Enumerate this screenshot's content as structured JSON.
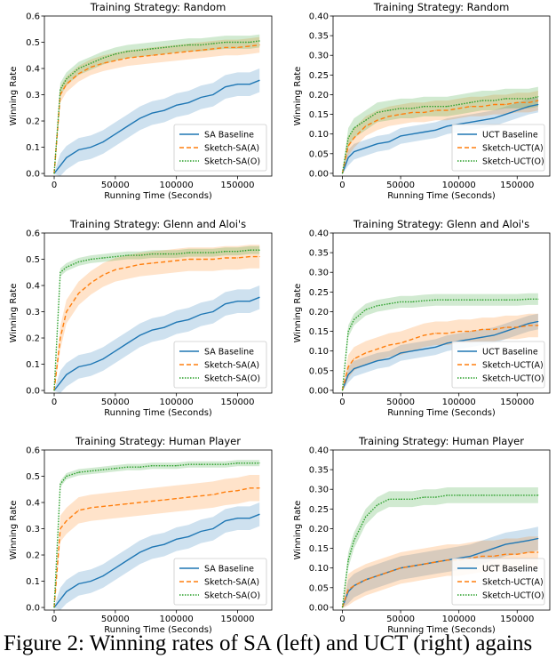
{
  "caption": "Figure 2: Winning rates of SA (left) and UCT (right) agains",
  "colors": {
    "sa": "#1f77b4",
    "sketch_a": "#ff7f0e",
    "sketch_o": "#2ca02c"
  },
  "chart_data": [
    {
      "type": "line",
      "title": "Training Strategy: Random",
      "xlabel": "Running Time (Seconds)",
      "ylabel": "Winning Rate",
      "xlim": [
        -8000,
        178000
      ],
      "ylim": [
        -0.01,
        0.6
      ],
      "xticks": [
        0,
        50000,
        100000,
        150000
      ],
      "xtick_labels": [
        "0",
        "50000",
        "100000",
        "150000"
      ],
      "yticks": [
        0.0,
        0.1,
        0.2,
        0.3,
        0.4,
        0.5,
        0.6
      ],
      "ytick_labels": [
        "0.0",
        "0.1",
        "0.2",
        "0.3",
        "0.4",
        "0.5",
        "0.6"
      ],
      "legend_position": "bottom-right",
      "x": [
        0,
        5000,
        10000,
        20000,
        30000,
        40000,
        50000,
        60000,
        70000,
        80000,
        90000,
        100000,
        110000,
        120000,
        130000,
        140000,
        150000,
        160000,
        168000
      ],
      "series": [
        {
          "name": "SA Baseline",
          "color": "#1f77b4",
          "style": "solid",
          "values": [
            0.0,
            0.03,
            0.06,
            0.09,
            0.1,
            0.12,
            0.15,
            0.18,
            0.21,
            0.23,
            0.24,
            0.26,
            0.27,
            0.29,
            0.3,
            0.33,
            0.34,
            0.34,
            0.355
          ],
          "band": 0.045
        },
        {
          "name": "Sketch-SA(A)",
          "color": "#ff7f0e",
          "style": "dashed",
          "values": [
            0.0,
            0.3,
            0.34,
            0.38,
            0.405,
            0.42,
            0.43,
            0.44,
            0.445,
            0.45,
            0.455,
            0.46,
            0.465,
            0.47,
            0.475,
            0.48,
            0.48,
            0.485,
            0.49
          ],
          "band": 0.03
        },
        {
          "name": "Sketch-SA(O)",
          "color": "#2ca02c",
          "style": "dotted",
          "values": [
            0.0,
            0.32,
            0.36,
            0.4,
            0.42,
            0.44,
            0.455,
            0.465,
            0.47,
            0.475,
            0.48,
            0.485,
            0.49,
            0.49,
            0.495,
            0.5,
            0.5,
            0.5,
            0.505
          ],
          "band": 0.025
        }
      ]
    },
    {
      "type": "line",
      "title": "Training Strategy: Random",
      "xlabel": "Running Time (Seconds)",
      "ylabel": "Winning Rate",
      "xlim": [
        -8000,
        178000
      ],
      "ylim": [
        -0.007,
        0.4
      ],
      "xticks": [
        0,
        50000,
        100000,
        150000
      ],
      "xtick_labels": [
        "0",
        "50000",
        "100000",
        "150000"
      ],
      "yticks": [
        0.0,
        0.05,
        0.1,
        0.15,
        0.2,
        0.25,
        0.3,
        0.35,
        0.4
      ],
      "ytick_labels": [
        "0.00",
        "0.05",
        "0.10",
        "0.15",
        "0.20",
        "0.25",
        "0.30",
        "0.35",
        "0.40"
      ],
      "legend_position": "bottom-right",
      "x": [
        0,
        5000,
        10000,
        20000,
        30000,
        40000,
        50000,
        60000,
        70000,
        80000,
        90000,
        100000,
        110000,
        120000,
        130000,
        140000,
        150000,
        160000,
        168000
      ],
      "series": [
        {
          "name": "UCT Baseline",
          "color": "#1f77b4",
          "style": "solid",
          "values": [
            0.0,
            0.04,
            0.055,
            0.065,
            0.075,
            0.08,
            0.095,
            0.1,
            0.105,
            0.11,
            0.12,
            0.125,
            0.13,
            0.135,
            0.14,
            0.15,
            0.16,
            0.17,
            0.175
          ],
          "band": 0.02
        },
        {
          "name": "Sketch-UCT(A)",
          "color": "#ff7f0e",
          "style": "dashed",
          "values": [
            0.0,
            0.07,
            0.09,
            0.12,
            0.135,
            0.145,
            0.15,
            0.155,
            0.155,
            0.16,
            0.16,
            0.165,
            0.17,
            0.17,
            0.175,
            0.175,
            0.18,
            0.18,
            0.185
          ],
          "band": 0.025
        },
        {
          "name": "Sketch-UCT(O)",
          "color": "#2ca02c",
          "style": "dotted",
          "values": [
            0.0,
            0.09,
            0.115,
            0.135,
            0.155,
            0.16,
            0.165,
            0.165,
            0.17,
            0.17,
            0.17,
            0.175,
            0.18,
            0.185,
            0.185,
            0.19,
            0.19,
            0.19,
            0.195
          ],
          "band": 0.025
        }
      ]
    },
    {
      "type": "line",
      "title": "Training Strategy: Glenn and Aloi's",
      "xlabel": "Running Time (Seconds)",
      "ylabel": "Winning Rate",
      "xlim": [
        -8000,
        178000
      ],
      "ylim": [
        -0.01,
        0.6
      ],
      "xticks": [
        0,
        50000,
        100000,
        150000
      ],
      "xtick_labels": [
        "0",
        "50000",
        "100000",
        "150000"
      ],
      "yticks": [
        0.0,
        0.1,
        0.2,
        0.3,
        0.4,
        0.5,
        0.6
      ],
      "ytick_labels": [
        "0.0",
        "0.1",
        "0.2",
        "0.3",
        "0.4",
        "0.5",
        "0.6"
      ],
      "legend_position": "bottom-right",
      "x": [
        0,
        5000,
        10000,
        20000,
        30000,
        40000,
        50000,
        60000,
        70000,
        80000,
        90000,
        100000,
        110000,
        120000,
        130000,
        140000,
        150000,
        160000,
        168000
      ],
      "series": [
        {
          "name": "SA Baseline",
          "color": "#1f77b4",
          "style": "solid",
          "values": [
            0.0,
            0.03,
            0.06,
            0.09,
            0.1,
            0.12,
            0.15,
            0.18,
            0.21,
            0.23,
            0.24,
            0.26,
            0.27,
            0.29,
            0.3,
            0.33,
            0.34,
            0.34,
            0.355
          ],
          "band": 0.045
        },
        {
          "name": "Sketch-SA(A)",
          "color": "#ff7f0e",
          "style": "dashed",
          "values": [
            0.0,
            0.2,
            0.3,
            0.37,
            0.41,
            0.44,
            0.46,
            0.47,
            0.48,
            0.485,
            0.49,
            0.495,
            0.5,
            0.5,
            0.5,
            0.505,
            0.505,
            0.51,
            0.51
          ],
          "band": 0.045
        },
        {
          "name": "Sketch-SA(O)",
          "color": "#2ca02c",
          "style": "dotted",
          "values": [
            0.0,
            0.45,
            0.47,
            0.49,
            0.5,
            0.505,
            0.51,
            0.515,
            0.515,
            0.52,
            0.52,
            0.52,
            0.525,
            0.525,
            0.525,
            0.53,
            0.53,
            0.535,
            0.535
          ],
          "band": 0.015
        }
      ]
    },
    {
      "type": "line",
      "title": "Training Strategy: Glenn and Aloi's",
      "xlabel": "Running Time (Seconds)",
      "ylabel": "Winning Rate",
      "xlim": [
        -8000,
        178000
      ],
      "ylim": [
        -0.007,
        0.4
      ],
      "xticks": [
        0,
        50000,
        100000,
        150000
      ],
      "xtick_labels": [
        "0",
        "50000",
        "100000",
        "150000"
      ],
      "yticks": [
        0.0,
        0.05,
        0.1,
        0.15,
        0.2,
        0.25,
        0.3,
        0.35,
        0.4
      ],
      "ytick_labels": [
        "0.00",
        "0.05",
        "0.10",
        "0.15",
        "0.20",
        "0.25",
        "0.30",
        "0.35",
        "0.40"
      ],
      "legend_position": "bottom-right",
      "x": [
        0,
        5000,
        10000,
        20000,
        30000,
        40000,
        50000,
        60000,
        70000,
        80000,
        90000,
        100000,
        110000,
        120000,
        130000,
        140000,
        150000,
        160000,
        168000
      ],
      "series": [
        {
          "name": "UCT Baseline",
          "color": "#1f77b4",
          "style": "solid",
          "values": [
            0.0,
            0.04,
            0.055,
            0.065,
            0.075,
            0.08,
            0.095,
            0.1,
            0.105,
            0.11,
            0.12,
            0.125,
            0.13,
            0.135,
            0.14,
            0.15,
            0.16,
            0.17,
            0.175
          ],
          "band": 0.02
        },
        {
          "name": "Sketch-UCT(A)",
          "color": "#ff7f0e",
          "style": "dashed",
          "values": [
            0.0,
            0.06,
            0.08,
            0.095,
            0.105,
            0.115,
            0.12,
            0.13,
            0.14,
            0.145,
            0.145,
            0.15,
            0.15,
            0.155,
            0.155,
            0.16,
            0.16,
            0.165,
            0.165
          ],
          "band": 0.03
        },
        {
          "name": "Sketch-UCT(O)",
          "color": "#2ca02c",
          "style": "dotted",
          "values": [
            0.0,
            0.15,
            0.18,
            0.205,
            0.215,
            0.22,
            0.225,
            0.225,
            0.228,
            0.23,
            0.23,
            0.23,
            0.23,
            0.23,
            0.23,
            0.23,
            0.23,
            0.232,
            0.232
          ],
          "band": 0.015
        }
      ]
    },
    {
      "type": "line",
      "title": "Training Strategy: Human Player",
      "xlabel": "Running Time (Seconds)",
      "ylabel": "Winning Rate",
      "xlim": [
        -8000,
        178000
      ],
      "ylim": [
        -0.01,
        0.6
      ],
      "xticks": [
        0,
        50000,
        100000,
        150000
      ],
      "xtick_labels": [
        "0",
        "50000",
        "100000",
        "150000"
      ],
      "yticks": [
        0.0,
        0.1,
        0.2,
        0.3,
        0.4,
        0.5,
        0.6
      ],
      "ytick_labels": [
        "0.0",
        "0.1",
        "0.2",
        "0.3",
        "0.4",
        "0.5",
        "0.6"
      ],
      "legend_position": "bottom-right",
      "x": [
        0,
        5000,
        10000,
        20000,
        30000,
        40000,
        50000,
        60000,
        70000,
        80000,
        90000,
        100000,
        110000,
        120000,
        130000,
        140000,
        150000,
        160000,
        168000
      ],
      "series": [
        {
          "name": "SA Baseline",
          "color": "#1f77b4",
          "style": "solid",
          "values": [
            0.0,
            0.03,
            0.06,
            0.09,
            0.1,
            0.12,
            0.15,
            0.18,
            0.21,
            0.23,
            0.24,
            0.26,
            0.27,
            0.29,
            0.3,
            0.33,
            0.34,
            0.34,
            0.355
          ],
          "band": 0.045
        },
        {
          "name": "Sketch-SA(A)",
          "color": "#ff7f0e",
          "style": "dashed",
          "values": [
            0.0,
            0.3,
            0.33,
            0.37,
            0.38,
            0.385,
            0.39,
            0.395,
            0.4,
            0.405,
            0.41,
            0.415,
            0.42,
            0.425,
            0.43,
            0.44,
            0.445,
            0.455,
            0.455
          ],
          "band": 0.05
        },
        {
          "name": "Sketch-SA(O)",
          "color": "#2ca02c",
          "style": "dotted",
          "values": [
            0.0,
            0.47,
            0.5,
            0.515,
            0.52,
            0.525,
            0.53,
            0.535,
            0.535,
            0.54,
            0.54,
            0.54,
            0.545,
            0.545,
            0.545,
            0.545,
            0.55,
            0.55,
            0.55
          ],
          "band": 0.012
        }
      ]
    },
    {
      "type": "line",
      "title": "Training Strategy: Human Player",
      "xlabel": "Running Time (Seconds)",
      "ylabel": "Winning Rate",
      "xlim": [
        -8000,
        178000
      ],
      "ylim": [
        -0.007,
        0.4
      ],
      "xticks": [
        0,
        50000,
        100000,
        150000
      ],
      "xtick_labels": [
        "0",
        "50000",
        "100000",
        "150000"
      ],
      "yticks": [
        0.0,
        0.05,
        0.1,
        0.15,
        0.2,
        0.25,
        0.3,
        0.35,
        0.4
      ],
      "ytick_labels": [
        "0.00",
        "0.05",
        "0.10",
        "0.15",
        "0.20",
        "0.25",
        "0.30",
        "0.35",
        "0.40"
      ],
      "legend_position": "bottom-right",
      "x": [
        0,
        5000,
        10000,
        20000,
        30000,
        40000,
        50000,
        60000,
        70000,
        80000,
        90000,
        100000,
        110000,
        120000,
        130000,
        140000,
        150000,
        160000,
        168000
      ],
      "series": [
        {
          "name": "UCT Baseline",
          "color": "#1f77b4",
          "style": "solid",
          "values": [
            0.0,
            0.04,
            0.055,
            0.07,
            0.08,
            0.09,
            0.1,
            0.105,
            0.11,
            0.115,
            0.12,
            0.125,
            0.13,
            0.14,
            0.15,
            0.16,
            0.165,
            0.17,
            0.175
          ],
          "band": 0.03
        },
        {
          "name": "Sketch-UCT(A)",
          "color": "#ff7f0e",
          "style": "dashed",
          "values": [
            0.0,
            0.045,
            0.055,
            0.07,
            0.08,
            0.09,
            0.1,
            0.105,
            0.11,
            0.115,
            0.12,
            0.12,
            0.125,
            0.13,
            0.13,
            0.135,
            0.135,
            0.14,
            0.14
          ],
          "band": 0.04
        },
        {
          "name": "Sketch-UCT(O)",
          "color": "#2ca02c",
          "style": "dotted",
          "values": [
            0.0,
            0.12,
            0.17,
            0.23,
            0.26,
            0.275,
            0.275,
            0.275,
            0.28,
            0.28,
            0.285,
            0.285,
            0.285,
            0.285,
            0.285,
            0.285,
            0.285,
            0.285,
            0.285
          ],
          "band": 0.02
        }
      ]
    }
  ]
}
